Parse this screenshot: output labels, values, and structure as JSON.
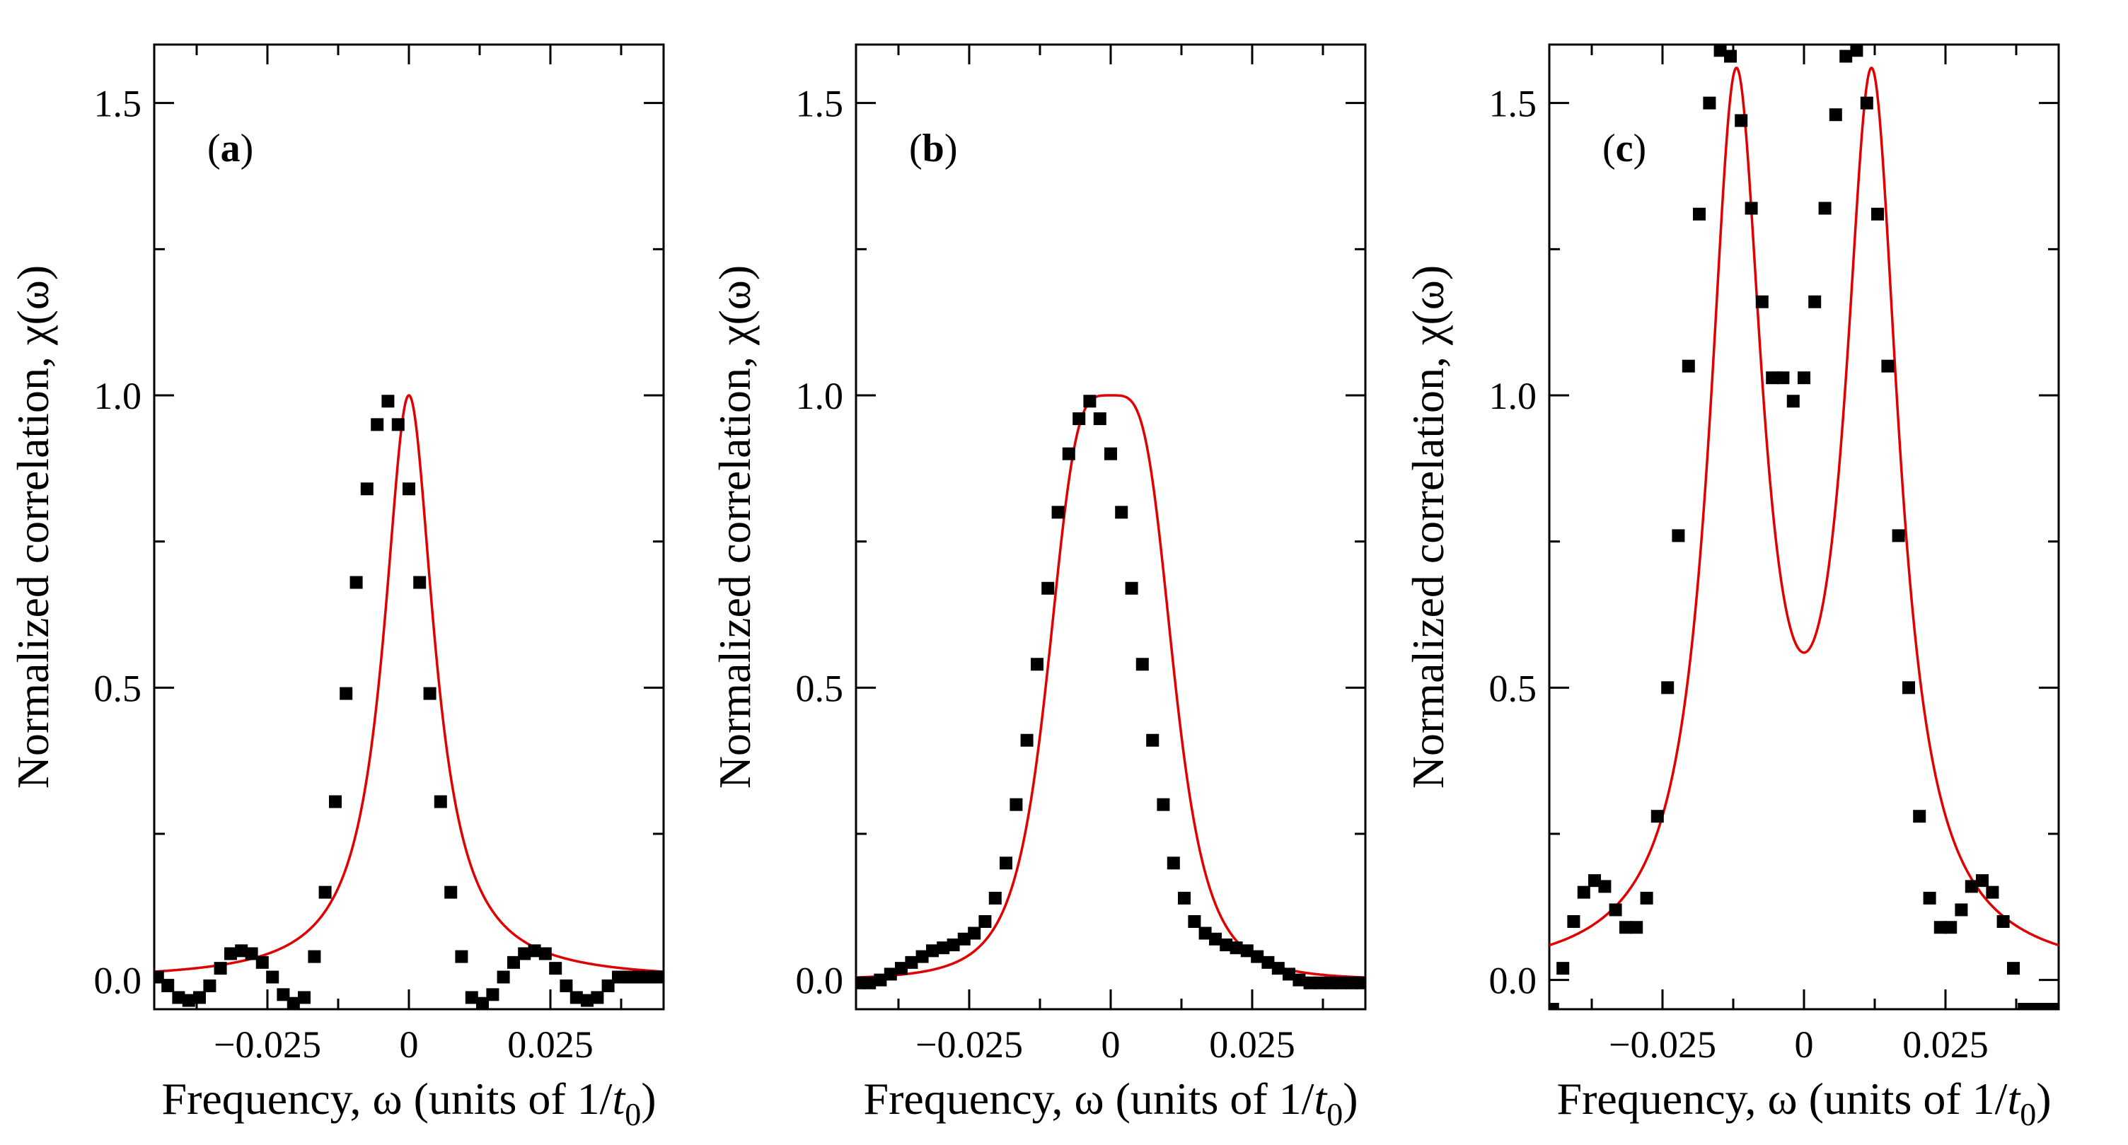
{
  "figure": {
    "panels": [
      "(a)",
      "(b)",
      "(c)"
    ]
  },
  "chart_data": [
    {
      "type": "scatter",
      "panel_label": "(a)",
      "xlabel": "Frequency, ω (units of 1/t0)",
      "ylabel": "Normalized correlation,  χ(ω)",
      "xlim": [
        -0.045,
        0.045
      ],
      "ylim": [
        -0.05,
        1.6
      ],
      "xticks": [
        -0.025,
        0,
        0.025
      ],
      "xtick_labels": [
        "−0.025",
        "0",
        "0.025"
      ],
      "yticks": [
        0.0,
        0.5,
        1.0,
        1.5
      ],
      "ytick_labels": [
        "0.0",
        "0.5",
        "1.0",
        "1.5"
      ],
      "grid": false,
      "series": [
        {
          "kind": "markers",
          "color": "#000000",
          "x": [
            -0.0444,
            -0.0426,
            -0.0407,
            -0.0389,
            -0.037,
            -0.0352,
            -0.0333,
            -0.0315,
            -0.0296,
            -0.0278,
            -0.0259,
            -0.0241,
            -0.0222,
            -0.0204,
            -0.0185,
            -0.0167,
            -0.0148,
            -0.013,
            -0.0111,
            -0.0093,
            -0.0074,
            -0.0056,
            -0.0037,
            -0.0019,
            0,
            0.0019,
            0.0037,
            0.0056,
            0.0074,
            0.0093,
            0.0111,
            0.013,
            0.0148,
            0.0167,
            0.0185,
            0.0204,
            0.0222,
            0.0241,
            0.0259,
            0.0278,
            0.0296,
            0.0315,
            0.0333,
            0.0352,
            0.037,
            0.0389,
            0.0407,
            0.0426,
            0.0444
          ],
          "y": [
            0.005,
            -0.01,
            -0.03,
            -0.035,
            -0.03,
            -0.01,
            0.02,
            0.045,
            0.05,
            0.045,
            0.03,
            0.005,
            -0.025,
            -0.04,
            -0.03,
            0.04,
            0.15,
            0.305,
            0.49,
            0.68,
            0.84,
            0.95,
            0.99,
            0.95,
            0.84,
            0.68,
            0.49,
            0.305,
            0.15,
            0.04,
            -0.03,
            -0.04,
            -0.025,
            0.005,
            0.03,
            0.045,
            0.05,
            0.045,
            0.02,
            -0.01,
            -0.03,
            -0.035,
            -0.03,
            -0.01,
            0.005,
            0.005,
            0.005,
            0.005,
            0.005
          ]
        },
        {
          "kind": "line",
          "color": "#e00000",
          "function": "lorentzian",
          "center": 0,
          "gamma": 0.0054,
          "amplitude": 1.0
        }
      ]
    },
    {
      "type": "scatter",
      "panel_label": "(b)",
      "xlabel": "Frequency, ω (units of 1/t0)",
      "ylabel": "Normalized correlation,  χ(ω)",
      "xlim": [
        -0.045,
        0.045
      ],
      "ylim": [
        -0.05,
        1.6
      ],
      "xticks": [
        -0.025,
        0,
        0.025
      ],
      "xtick_labels": [
        "−0.025",
        "0",
        "0.025"
      ],
      "yticks": [
        0.0,
        0.5,
        1.0,
        1.5
      ],
      "ytick_labels": [
        "0.0",
        "0.5",
        "1.0",
        "1.5"
      ],
      "grid": false,
      "series": [
        {
          "kind": "markers",
          "color": "#000000",
          "x": [
            -0.0444,
            -0.0426,
            -0.0407,
            -0.0389,
            -0.037,
            -0.0352,
            -0.0333,
            -0.0315,
            -0.0296,
            -0.0278,
            -0.0259,
            -0.0241,
            -0.0222,
            -0.0204,
            -0.0185,
            -0.0167,
            -0.0148,
            -0.013,
            -0.0111,
            -0.0093,
            -0.0074,
            -0.0056,
            -0.0037,
            -0.0019,
            0,
            0.0019,
            0.0037,
            0.0056,
            0.0074,
            0.0093,
            0.0111,
            0.013,
            0.0148,
            0.0167,
            0.0185,
            0.0204,
            0.0222,
            0.0241,
            0.0259,
            0.0278,
            0.0296,
            0.0315,
            0.0333,
            0.0352,
            0.037,
            0.0389,
            0.0407,
            0.0426,
            0.0444
          ],
          "y": [
            -0.005,
            -0.005,
            0.0,
            0.01,
            0.02,
            0.03,
            0.04,
            0.05,
            0.055,
            0.06,
            0.07,
            0.08,
            0.1,
            0.14,
            0.2,
            0.3,
            0.41,
            0.54,
            0.67,
            0.8,
            0.9,
            0.96,
            0.99,
            0.96,
            0.9,
            0.8,
            0.67,
            0.54,
            0.41,
            0.3,
            0.2,
            0.14,
            0.1,
            0.08,
            0.07,
            0.06,
            0.055,
            0.05,
            0.04,
            0.03,
            0.02,
            0.01,
            0.0,
            -0.005,
            -0.005,
            -0.005,
            -0.005,
            -0.005,
            -0.005
          ]
        },
        {
          "kind": "line",
          "color": "#e00000",
          "function": "flat-top",
          "center": 0,
          "width": 0.0115,
          "amplitude": 1.0
        }
      ]
    },
    {
      "type": "scatter",
      "panel_label": "(c)",
      "xlabel": "Frequency, ω (units of 1/t0)",
      "ylabel": "Normalized correlation,  χ(ω)",
      "xlim": [
        -0.045,
        0.045
      ],
      "ylim": [
        -0.05,
        1.6
      ],
      "xticks": [
        -0.025,
        0,
        0.025
      ],
      "xtick_labels": [
        "−0.025",
        "0",
        "0.025"
      ],
      "yticks": [
        0.0,
        0.5,
        1.0,
        1.5
      ],
      "ytick_labels": [
        "0.0",
        "0.5",
        "1.0",
        "1.5"
      ],
      "grid": false,
      "series": [
        {
          "kind": "markers",
          "color": "#000000",
          "x": [
            -0.0444,
            -0.0426,
            -0.0407,
            -0.0389,
            -0.037,
            -0.0352,
            -0.0333,
            -0.0315,
            -0.0296,
            -0.0278,
            -0.0259,
            -0.0241,
            -0.0222,
            -0.0204,
            -0.0185,
            -0.0167,
            -0.0148,
            -0.013,
            -0.0111,
            -0.0093,
            -0.0074,
            -0.0056,
            -0.0037,
            -0.0019,
            0,
            0.0019,
            0.0037,
            0.0056,
            0.0074,
            0.0093,
            0.0111,
            0.013,
            0.0148,
            0.0167,
            0.0185,
            0.0204,
            0.0222,
            0.0241,
            0.0259,
            0.0278,
            0.0296,
            0.0315,
            0.0333,
            0.0352,
            0.037,
            0.0389,
            0.0407,
            0.0426,
            0.0444
          ],
          "y": [
            -0.05,
            0.02,
            0.1,
            0.15,
            0.17,
            0.16,
            0.12,
            0.09,
            0.09,
            0.14,
            0.28,
            0.5,
            0.76,
            1.05,
            1.31,
            1.5,
            1.59,
            1.58,
            1.47,
            1.32,
            1.16,
            1.03,
            1.03,
            0.99,
            1.03,
            1.16,
            1.32,
            1.48,
            1.58,
            1.59,
            1.5,
            1.31,
            1.05,
            0.76,
            0.5,
            0.28,
            0.14,
            0.09,
            0.09,
            0.12,
            0.16,
            0.17,
            0.15,
            0.1,
            0.02,
            -0.05,
            -0.05,
            -0.05,
            -0.05
          ]
        },
        {
          "kind": "line",
          "color": "#e00000",
          "function": "double-lorentzian",
          "centers": [
            -0.012,
            0.012
          ],
          "gamma": 0.0058,
          "amplitude": 1.56
        }
      ]
    }
  ]
}
